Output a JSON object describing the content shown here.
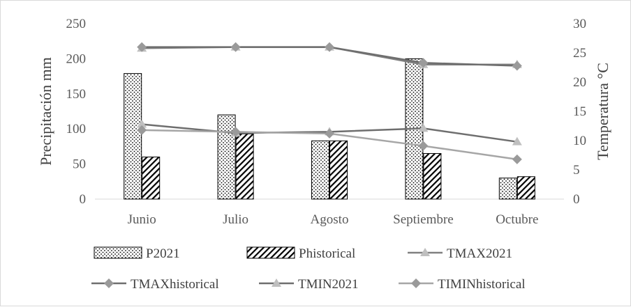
{
  "chart_data": {
    "type": "bar",
    "categories": [
      "Junio",
      "Julio",
      "Agosto",
      "Septiembre",
      "Octubre"
    ],
    "ylabel": "Precipitación  mm",
    "y2label": "Temperatura °C",
    "ylim": [
      0,
      250
    ],
    "y2lim": [
      0,
      30
    ],
    "yticks": [
      "0",
      "50",
      "100",
      "150",
      "200",
      "250"
    ],
    "y2ticks": [
      "0",
      "5",
      "10",
      "15",
      "20",
      "25",
      "30"
    ],
    "grid": false,
    "legend_position": "bottom",
    "bar_series": [
      {
        "name": "P2021",
        "pattern": "dots",
        "values": [
          179,
          120,
          83,
          200,
          30
        ]
      },
      {
        "name": "Phistorical",
        "pattern": "hatch",
        "values": [
          60,
          93,
          83,
          65,
          32
        ]
      }
    ],
    "line_series": [
      {
        "name": "TMAX2021",
        "axis": "right",
        "color": "#808080",
        "marker": "triangle",
        "values": [
          25.8,
          26.0,
          26.0,
          23.0,
          23.0
        ]
      },
      {
        "name": "TMAXhistorical",
        "axis": "right",
        "color": "#6e6e6e",
        "marker": "diamond",
        "values": [
          26.0,
          26.0,
          26.0,
          23.3,
          22.8
        ]
      },
      {
        "name": "TMIN2021",
        "axis": "right",
        "color": "#6e6e6e",
        "marker": "triangle",
        "values": [
          12.8,
          11.3,
          11.5,
          12.1,
          9.8
        ]
      },
      {
        "name": "TIMINhistorical",
        "axis": "right",
        "color": "#a6a6a6",
        "marker": "diamond",
        "values": [
          11.8,
          11.5,
          11.2,
          9.1,
          6.8
        ]
      }
    ],
    "line_style_note": "",
    "marker_fill": "#bfbfbf",
    "marker_fill_diamond": "#9a9a9a"
  }
}
